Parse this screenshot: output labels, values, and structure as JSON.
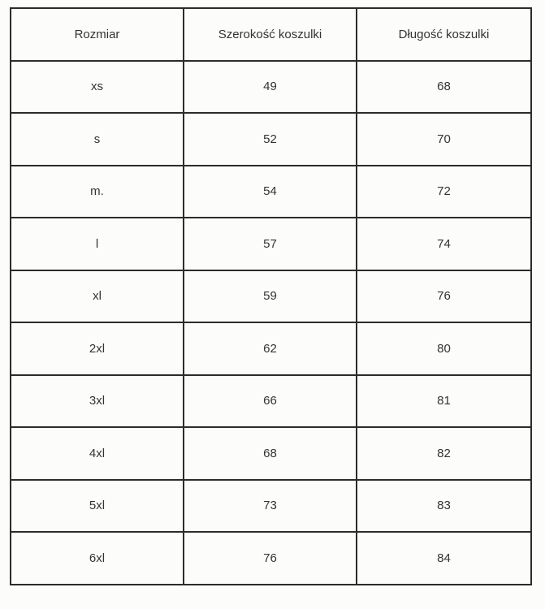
{
  "table": {
    "headers": [
      "Rozmiar",
      "Szerokość koszulki",
      "Długość koszulki"
    ],
    "rows": [
      [
        "xs",
        "49",
        "68"
      ],
      [
        "s",
        "52",
        "70"
      ],
      [
        "m.",
        "54",
        "72"
      ],
      [
        "l",
        "57",
        "74"
      ],
      [
        "xl",
        "59",
        "76"
      ],
      [
        "2xl",
        "62",
        "80"
      ],
      [
        "3xl",
        "66",
        "81"
      ],
      [
        "4xl",
        "68",
        "82"
      ],
      [
        "5xl",
        "73",
        "83"
      ],
      [
        "6xl",
        "76",
        "84"
      ]
    ]
  }
}
